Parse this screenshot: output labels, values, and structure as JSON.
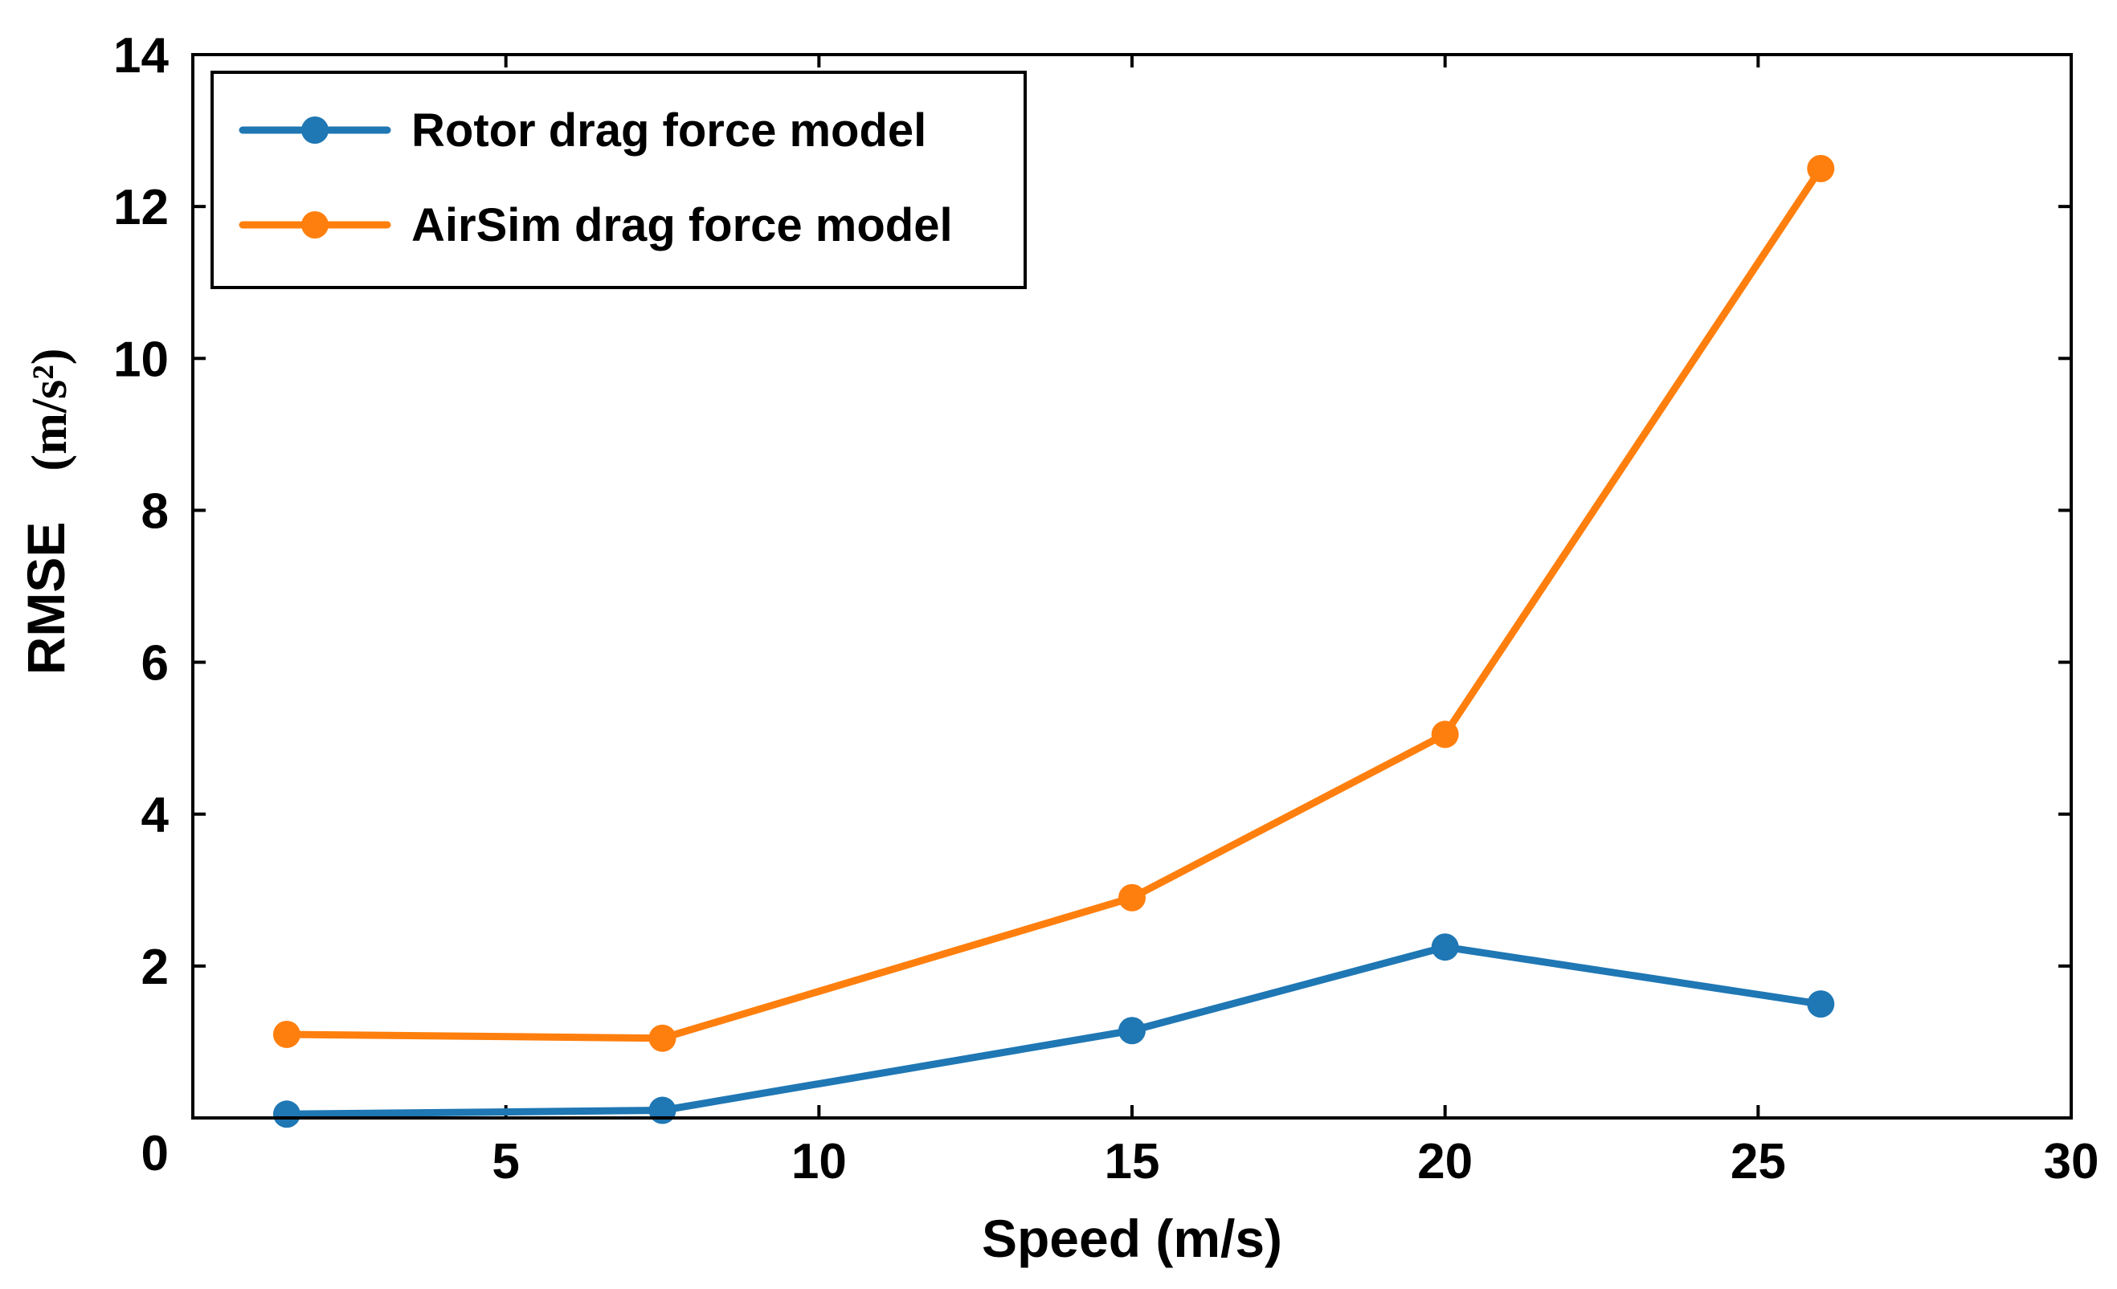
{
  "chart_data": {
    "type": "line",
    "title": "",
    "xlabel": "Speed (m/s)",
    "ylabel": "RMSE",
    "ylabel_unit": "(m/s²)",
    "xlim": [
      0,
      30
    ],
    "ylim": [
      0,
      14
    ],
    "xticks": [
      5,
      10,
      15,
      20,
      25,
      30
    ],
    "yticks": [
      2,
      4,
      6,
      8,
      10,
      12,
      14
    ],
    "origin_label": "0",
    "grid": false,
    "legend_position": "top-left",
    "series": [
      {
        "name": "Rotor drag force model",
        "color": "#1f77b4",
        "x": [
          1.5,
          7.5,
          15,
          20,
          26
        ],
        "y": [
          0.05,
          0.1,
          1.15,
          2.25,
          1.5
        ]
      },
      {
        "name": "AirSim drag force model",
        "color": "#ff7f0e",
        "x": [
          1.5,
          7.5,
          15,
          20,
          26
        ],
        "y": [
          1.1,
          1.05,
          2.9,
          5.05,
          12.5
        ]
      }
    ]
  }
}
